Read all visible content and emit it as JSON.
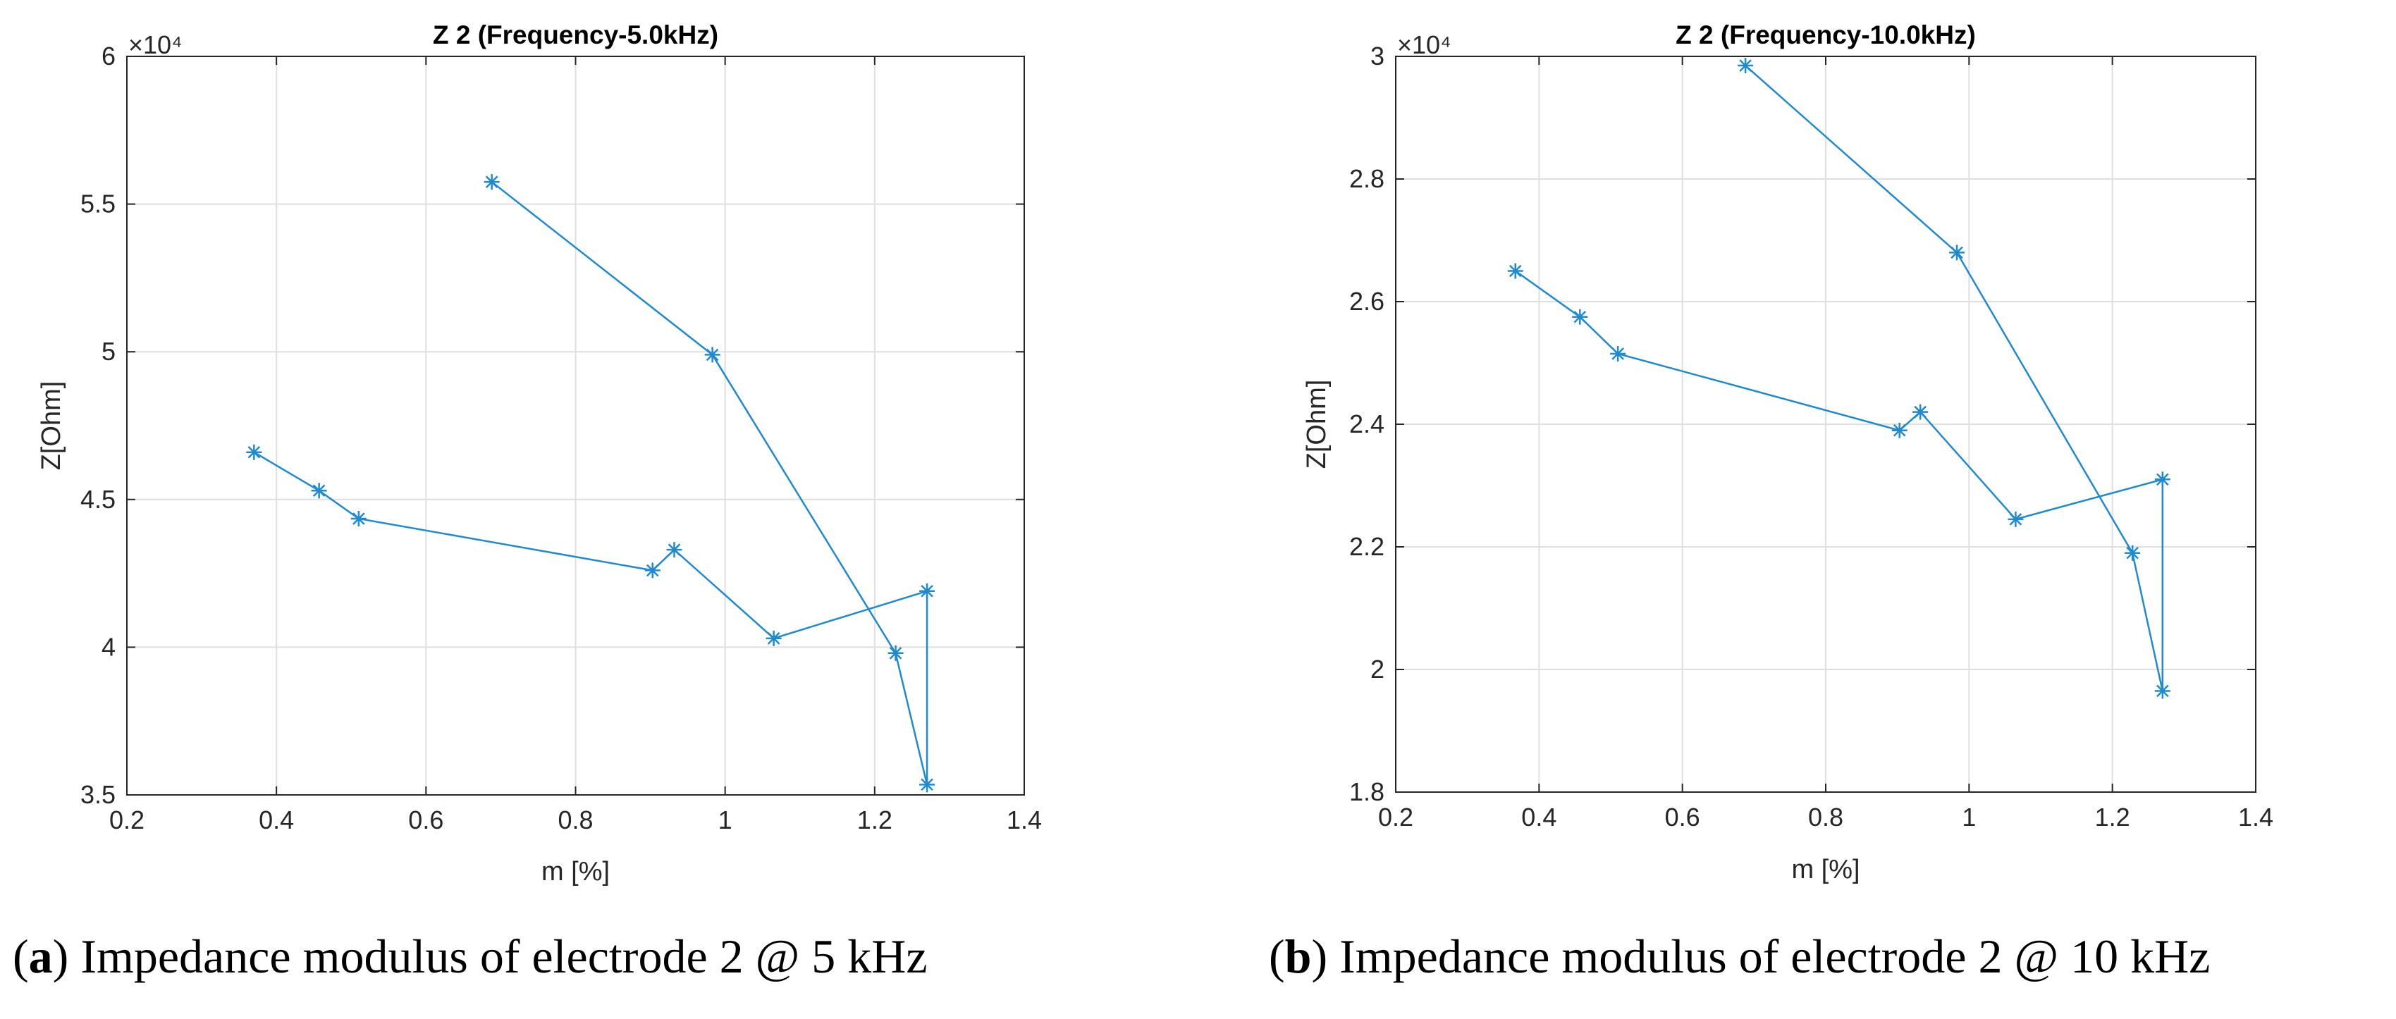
{
  "chart_data": [
    {
      "type": "line",
      "title": "Z 2 (Frequency-5.0kHz)",
      "xlabel": "m [%]",
      "ylabel": "Z[Ohm]",
      "y_exponent": "×10⁴",
      "xlim": [
        0.2,
        1.4
      ],
      "ylim": [
        3.5,
        6
      ],
      "xticks": [
        0.2,
        0.4,
        0.6,
        0.8,
        1,
        1.2,
        1.4
      ],
      "xtick_labels": [
        "0.2",
        "0.4",
        "0.6",
        "0.8",
        "1",
        "1.2",
        "1.4"
      ],
      "yticks": [
        3.5,
        4,
        4.5,
        5,
        5.5,
        6
      ],
      "ytick_labels": [
        "3.5",
        "4",
        "4.5",
        "5",
        "5.5",
        "6"
      ],
      "grid": true,
      "color": "#1f8ad0",
      "marker": "*",
      "x": [
        0.37,
        0.457,
        0.51,
        0.903,
        0.932,
        1.065,
        1.27,
        1.27,
        1.228,
        0.983,
        0.688
      ],
      "y": [
        4.66,
        4.53,
        4.435,
        4.26,
        4.33,
        4.03,
        4.19,
        3.535,
        3.98,
        4.99,
        5.575
      ]
    },
    {
      "type": "line",
      "title": "Z 2 (Frequency-10.0kHz)",
      "xlabel": "m [%]",
      "ylabel": "Z[Ohm]",
      "y_exponent": "×10⁴",
      "xlim": [
        0.2,
        1.4
      ],
      "ylim": [
        1.8,
        3
      ],
      "xticks": [
        0.2,
        0.4,
        0.6,
        0.8,
        1,
        1.2,
        1.4
      ],
      "xtick_labels": [
        "0.2",
        "0.4",
        "0.6",
        "0.8",
        "1",
        "1.2",
        "1.4"
      ],
      "yticks": [
        1.8,
        2,
        2.2,
        2.4,
        2.6,
        2.8,
        3
      ],
      "ytick_labels": [
        "1.8",
        "2",
        "2.2",
        "2.4",
        "2.6",
        "2.8",
        "3"
      ],
      "grid": true,
      "color": "#1f8ad0",
      "marker": "*",
      "x": [
        0.367,
        0.457,
        0.51,
        0.903,
        0.932,
        1.065,
        1.27,
        1.27,
        1.228,
        0.983,
        0.688
      ],
      "y": [
        2.65,
        2.575,
        2.515,
        2.39,
        2.42,
        2.245,
        2.31,
        1.965,
        2.19,
        2.68,
        2.985
      ]
    }
  ],
  "captions": [
    {
      "letter": "a",
      "text": " Impedance modulus of electrode 2 @ 5 kHz"
    },
    {
      "letter": "b",
      "text": " Impedance modulus of electrode 2 @ 10 kHz"
    }
  ]
}
